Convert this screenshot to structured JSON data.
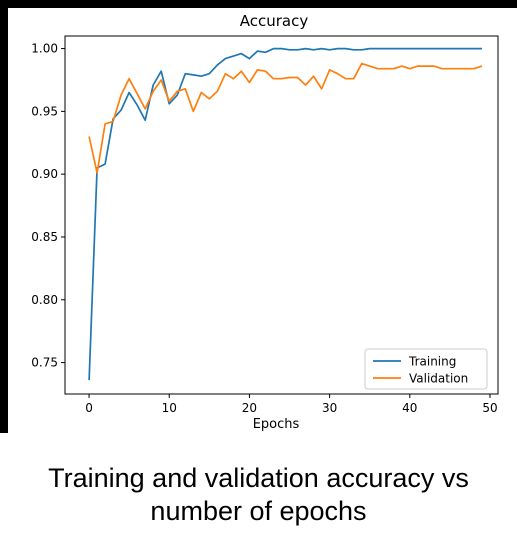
{
  "caption": {
    "line1": "Training and validation accuracy vs",
    "line2": "number of epochs"
  },
  "chart_data": {
    "type": "line",
    "title": "Accuracy",
    "xlabel": "Epochs",
    "ylabel": "",
    "xlim": [
      -3,
      51
    ],
    "ylim": [
      0.725,
      1.01
    ],
    "xticks": [
      0,
      10,
      20,
      30,
      40,
      50
    ],
    "yticks": [
      0.75,
      0.8,
      0.85,
      0.9,
      0.95,
      1.0
    ],
    "ytick_labels": [
      "0.75",
      "0.80",
      "0.85",
      "0.90",
      "0.95",
      "1.00"
    ],
    "grid": false,
    "legend_position": "lower-right",
    "x": [
      0,
      1,
      2,
      3,
      4,
      5,
      6,
      7,
      8,
      9,
      10,
      11,
      12,
      13,
      14,
      15,
      16,
      17,
      18,
      19,
      20,
      21,
      22,
      23,
      24,
      25,
      26,
      27,
      28,
      29,
      30,
      31,
      32,
      33,
      34,
      35,
      36,
      37,
      38,
      39,
      40,
      41,
      42,
      43,
      44,
      45,
      46,
      47,
      48,
      49
    ],
    "series": [
      {
        "name": "Training",
        "color": "#1f77b4",
        "values": [
          0.736,
          0.905,
          0.908,
          0.944,
          0.951,
          0.965,
          0.955,
          0.943,
          0.971,
          0.982,
          0.956,
          0.963,
          0.98,
          0.979,
          0.978,
          0.98,
          0.987,
          0.992,
          0.994,
          0.996,
          0.992,
          0.998,
          0.997,
          1.0,
          1.0,
          0.999,
          0.999,
          1.0,
          0.999,
          1.0,
          0.999,
          1.0,
          1.0,
          0.999,
          0.999,
          1.0,
          1.0,
          1.0,
          1.0,
          1.0,
          1.0,
          1.0,
          1.0,
          1.0,
          1.0,
          1.0,
          1.0,
          1.0,
          1.0,
          1.0
        ]
      },
      {
        "name": "Validation",
        "color": "#ff7f0e",
        "values": [
          0.93,
          0.901,
          0.94,
          0.942,
          0.963,
          0.976,
          0.964,
          0.952,
          0.966,
          0.975,
          0.958,
          0.966,
          0.968,
          0.95,
          0.965,
          0.96,
          0.966,
          0.98,
          0.976,
          0.982,
          0.973,
          0.983,
          0.982,
          0.976,
          0.976,
          0.977,
          0.977,
          0.971,
          0.978,
          0.968,
          0.983,
          0.98,
          0.976,
          0.976,
          0.988,
          0.986,
          0.984,
          0.984,
          0.984,
          0.986,
          0.984,
          0.986,
          0.986,
          0.986,
          0.984,
          0.984,
          0.984,
          0.984,
          0.984,
          0.986
        ]
      }
    ]
  }
}
